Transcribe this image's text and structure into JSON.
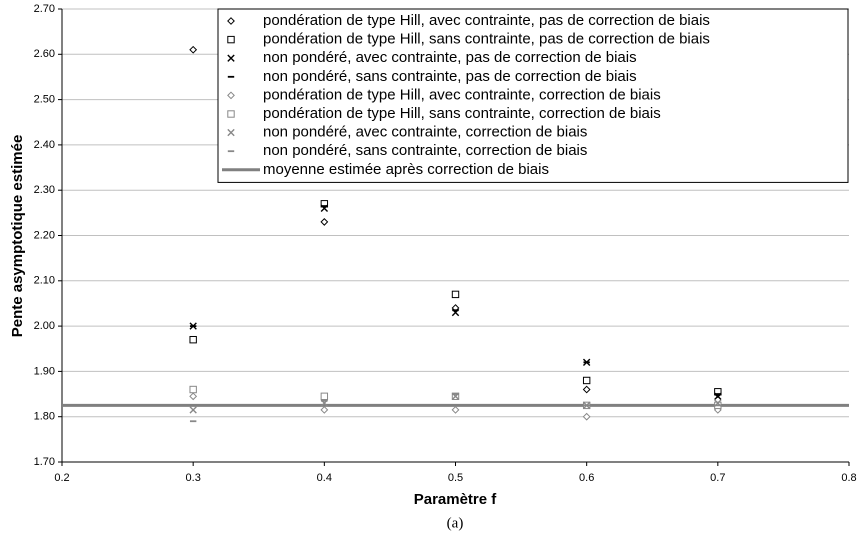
{
  "chart_data": {
    "type": "scatter",
    "xlabel": "Paramètre f",
    "ylabel": "Pente asymptotique estimée",
    "caption": "(a)",
    "x": [
      0.3,
      0.4,
      0.5,
      0.6,
      0.7
    ],
    "xlim": [
      0.2,
      0.8
    ],
    "xticks": [
      0.2,
      0.3,
      0.4,
      0.5,
      0.6,
      0.7,
      0.8
    ],
    "ylim": [
      1.7,
      2.7
    ],
    "yticks": [
      {
        "value": 1.7,
        "label": "1.70"
      },
      {
        "value": 1.8,
        "label": "1.80"
      },
      {
        "value": 1.9,
        "label": "1.90"
      },
      {
        "value": 2.0,
        "label": "2.00"
      },
      {
        "value": 2.1,
        "label": "2.10"
      },
      {
        "value": 2.2,
        "label": "2.20"
      },
      {
        "value": 2.3,
        "label": "2.30"
      },
      {
        "value": 2.4,
        "label": "2.40"
      },
      {
        "value": 2.5,
        "label": "2.50"
      },
      {
        "value": 2.6,
        "label": "2.60"
      },
      {
        "value": 2.7,
        "label": "2.70"
      }
    ],
    "grid": true,
    "legend": "upper right",
    "series": [
      {
        "name": "pondération de type Hill, avec contrainte, pas de correction de biais",
        "marker": "diamond",
        "color": "#000000",
        "values": [
          2.61,
          2.23,
          2.04,
          1.86,
          1.85
        ]
      },
      {
        "name": "pondération de type Hill, sans contrainte, pas de correction de biais",
        "marker": "square",
        "color": "#000000",
        "values": [
          1.97,
          2.27,
          2.07,
          1.88,
          1.855
        ]
      },
      {
        "name": "non pondéré, avec contrainte, pas de correction de biais",
        "marker": "x",
        "color": "#000000",
        "values": [
          2.0,
          2.26,
          2.03,
          1.92,
          1.845
        ]
      },
      {
        "name": "non pondéré, sans contrainte, pas de correction de biais",
        "marker": "dash",
        "color": "#000000",
        "values": [
          2.0,
          2.265,
          2.035,
          1.92,
          1.85
        ]
      },
      {
        "name": "pondération de type Hill, avec contrainte, correction de biais",
        "marker": "diamond",
        "color": "#888888",
        "values": [
          1.845,
          1.815,
          1.815,
          1.8,
          1.815
        ]
      },
      {
        "name": "pondération de type Hill, sans contrainte, correction de biais",
        "marker": "square",
        "color": "#888888",
        "values": [
          1.86,
          1.845,
          1.845,
          1.825,
          1.825
        ]
      },
      {
        "name": "non pondéré, avec contrainte, correction de biais",
        "marker": "x",
        "color": "#888888",
        "values": [
          1.815,
          1.83,
          1.845,
          1.825,
          1.83
        ]
      },
      {
        "name": "non pondéré, sans contrainte, correction de biais",
        "marker": "dash",
        "color": "#888888",
        "values": [
          1.79,
          1.835,
          1.85,
          1.825,
          1.825
        ]
      }
    ],
    "reference_line": {
      "name": "moyenne estimée après correction de biais",
      "value": 1.825,
      "color": "#808080"
    }
  }
}
